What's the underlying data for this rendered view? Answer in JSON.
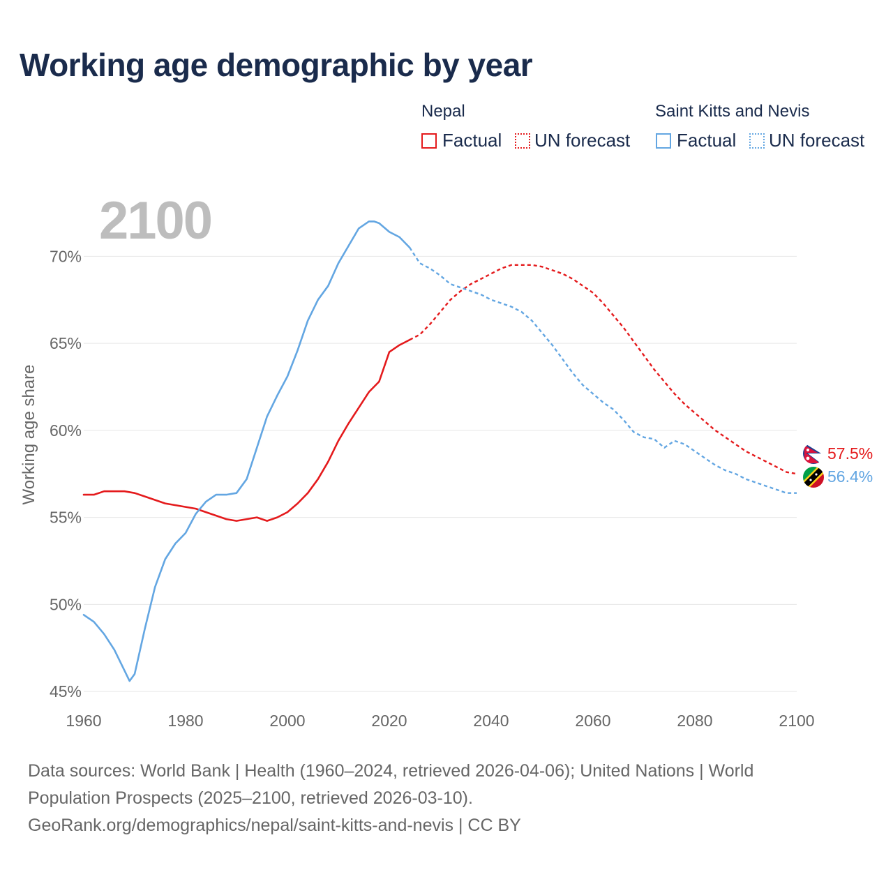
{
  "title": "Working age demographic by year",
  "colors": {
    "nepal": "#e41a1c",
    "skn": "#63a6e2",
    "grid": "#e6e6e6",
    "axis_text": "#666666",
    "year_watermark": "#bdbdbd"
  },
  "legend": {
    "groups": [
      {
        "name": "Nepal",
        "factual_label": "Factual",
        "forecast_label": "UN forecast"
      },
      {
        "name": "Saint Kitts and Nevis",
        "factual_label": "Factual",
        "forecast_label": "UN forecast"
      }
    ]
  },
  "sources": {
    "line1": "Data sources: World Bank | Health (1960–2024, retrieved 2026-04-06); United Nations | World",
    "line2": "Population Prospects (2025–2100, retrieved 2026-03-10).",
    "line3": "GeoRank.org/demographics/nepal/saint-kitts-and-nevis | CC BY"
  },
  "chart_data": {
    "type": "line",
    "title": "Working age demographic by year",
    "year_display": "2100",
    "xlabel": "",
    "ylabel": "Working age share",
    "xlim": [
      1960,
      2100
    ],
    "ylim": [
      43.2,
      73.5
    ],
    "x_ticks": [
      1960,
      1980,
      2000,
      2020,
      2040,
      2060,
      2080,
      2100
    ],
    "y_ticks": [
      45,
      50,
      55,
      60,
      65,
      70
    ],
    "y_tick_labels": [
      "45%",
      "50%",
      "55%",
      "60%",
      "65%",
      "70%"
    ],
    "grid": true,
    "legend_position": "top-right",
    "series": [
      {
        "name": "Nepal",
        "end_label": "57.5%",
        "factual": {
          "x": [
            1960,
            1962,
            1964,
            1966,
            1968,
            1970,
            1972,
            1974,
            1976,
            1978,
            1980,
            1982,
            1984,
            1986,
            1988,
            1990,
            1992,
            1994,
            1996,
            1998,
            2000,
            2002,
            2004,
            2006,
            2008,
            2010,
            2012,
            2014,
            2016,
            2018,
            2020,
            2022,
            2024
          ],
          "y": [
            56.3,
            56.3,
            56.5,
            56.5,
            56.5,
            56.4,
            56.2,
            56.0,
            55.8,
            55.7,
            55.6,
            55.5,
            55.3,
            55.1,
            54.9,
            54.8,
            54.9,
            55.0,
            54.8,
            55.0,
            55.3,
            55.8,
            56.4,
            57.2,
            58.2,
            59.4,
            60.4,
            61.3,
            62.2,
            62.8,
            64.5,
            64.9,
            65.2
          ]
        },
        "forecast": {
          "x": [
            2024,
            2026,
            2028,
            2030,
            2032,
            2034,
            2036,
            2038,
            2040,
            2042,
            2044,
            2046,
            2048,
            2050,
            2052,
            2054,
            2056,
            2058,
            2060,
            2062,
            2064,
            2066,
            2068,
            2070,
            2072,
            2074,
            2076,
            2078,
            2080,
            2082,
            2084,
            2086,
            2088,
            2090,
            2092,
            2094,
            2096,
            2098,
            2100
          ],
          "y": [
            65.2,
            65.5,
            66.1,
            66.8,
            67.5,
            68.0,
            68.4,
            68.7,
            69.0,
            69.3,
            69.5,
            69.5,
            69.5,
            69.4,
            69.2,
            69.0,
            68.7,
            68.3,
            67.9,
            67.3,
            66.6,
            65.9,
            65.1,
            64.3,
            63.5,
            62.8,
            62.1,
            61.5,
            61.0,
            60.5,
            60.0,
            59.6,
            59.2,
            58.8,
            58.5,
            58.2,
            57.9,
            57.6,
            57.5
          ]
        }
      },
      {
        "name": "Saint Kitts and Nevis",
        "end_label": "56.4%",
        "factual": {
          "x": [
            1960,
            1962,
            1964,
            1966,
            1968,
            1969,
            1970,
            1972,
            1974,
            1976,
            1978,
            1980,
            1982,
            1984,
            1986,
            1988,
            1990,
            1992,
            1994,
            1996,
            1998,
            2000,
            2002,
            2004,
            2006,
            2008,
            2010,
            2012,
            2014,
            2016,
            2017,
            2018,
            2020,
            2022,
            2024
          ],
          "y": [
            49.4,
            49.0,
            48.3,
            47.4,
            46.2,
            45.6,
            46.0,
            48.6,
            51.0,
            52.6,
            53.5,
            54.1,
            55.2,
            55.9,
            56.3,
            56.3,
            56.4,
            57.2,
            59.0,
            60.8,
            62.0,
            63.1,
            64.6,
            66.3,
            67.5,
            68.3,
            69.6,
            70.6,
            71.6,
            72.0,
            72.0,
            71.9,
            71.4,
            71.1,
            70.5
          ]
        },
        "forecast": {
          "x": [
            2024,
            2026,
            2028,
            2030,
            2032,
            2034,
            2036,
            2038,
            2040,
            2042,
            2044,
            2046,
            2048,
            2050,
            2052,
            2054,
            2056,
            2058,
            2060,
            2062,
            2064,
            2066,
            2068,
            2070,
            2072,
            2074,
            2076,
            2078,
            2080,
            2082,
            2084,
            2086,
            2088,
            2090,
            2092,
            2094,
            2096,
            2098,
            2100
          ],
          "y": [
            70.5,
            69.6,
            69.3,
            68.9,
            68.4,
            68.2,
            68.0,
            67.8,
            67.5,
            67.3,
            67.1,
            66.8,
            66.3,
            65.6,
            64.9,
            64.1,
            63.3,
            62.6,
            62.1,
            61.6,
            61.2,
            60.6,
            59.9,
            59.6,
            59.5,
            59.0,
            59.4,
            59.2,
            58.8,
            58.4,
            58.0,
            57.7,
            57.5,
            57.2,
            57.0,
            56.8,
            56.6,
            56.4,
            56.4
          ]
        }
      }
    ]
  }
}
